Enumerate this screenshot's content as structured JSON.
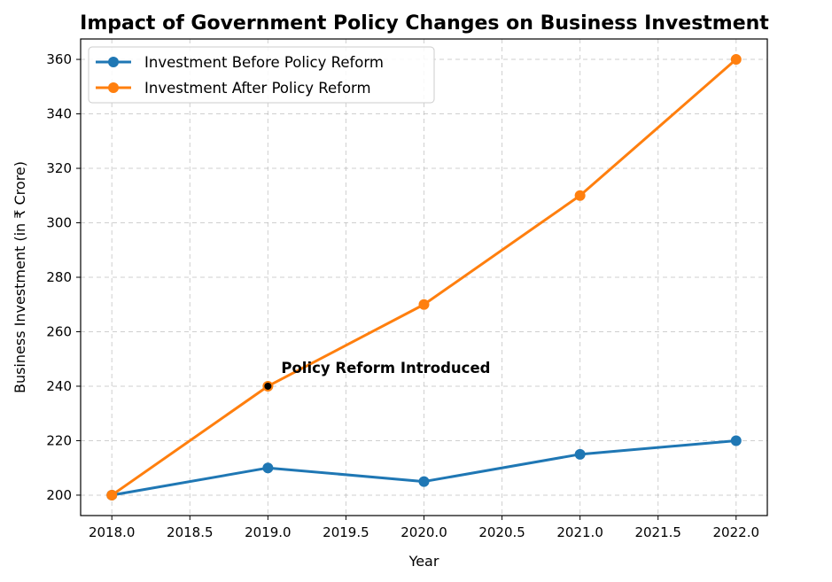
{
  "chart_data": {
    "type": "line",
    "title": "Impact of Government Policy Changes on Business Investment",
    "xlabel": "Year",
    "ylabel": "Business Investment (in ₹ Crore)",
    "x": [
      2018,
      2019,
      2020,
      2021,
      2022
    ],
    "xlim": [
      2017.8,
      2022.2
    ],
    "ylim": [
      192.5,
      367.5
    ],
    "xticks": [
      2018.0,
      2018.5,
      2019.0,
      2019.5,
      2020.0,
      2020.5,
      2021.0,
      2021.5,
      2022.0
    ],
    "xtick_labels": [
      "2018.0",
      "2018.5",
      "2019.0",
      "2019.5",
      "2020.0",
      "2020.5",
      "2021.0",
      "2021.5",
      "2022.0"
    ],
    "yticks": [
      200,
      220,
      240,
      260,
      280,
      300,
      320,
      340,
      360
    ],
    "ytick_labels": [
      "200",
      "220",
      "240",
      "260",
      "280",
      "300",
      "320",
      "340",
      "360"
    ],
    "grid": true,
    "legend_position": "top-left",
    "series": [
      {
        "name": "Investment Before Policy Reform",
        "values": [
          200,
          210,
          205,
          215,
          220
        ],
        "color": "#1f77b4"
      },
      {
        "name": "Investment After Policy Reform",
        "values": [
          200,
          240,
          270,
          310,
          360
        ],
        "color": "#ff7f0e"
      }
    ],
    "annotation": {
      "text": "Policy Reform Introduced",
      "x": 2019,
      "y": 240,
      "marker_color": "#000000"
    }
  }
}
